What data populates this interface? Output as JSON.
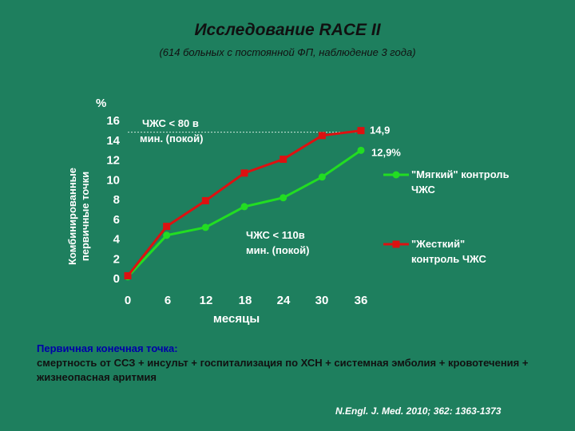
{
  "slide": {
    "title": "Исследование RACE II",
    "subtitle": "(614 больных с постоянной ФП, наблюдение 3 года)",
    "footnote_line1": "Первичная конечная точка:",
    "footnote_line2": "смертность от ССЗ + инсульт + госпитализация по ХСН + системная эмболия + кровотечения + жизнеопасная аритмия",
    "reference": "N.Engl. J. Med. 2010; 362: 1363-1373"
  },
  "colors": {
    "background": "#1e7f5e",
    "lenient": "#22dd22",
    "strict": "#dd1111"
  },
  "chart_data": {
    "type": "line",
    "ylabel_unit": "%",
    "ylabel_lines": [
      "Комбинированные",
      "первичные точки"
    ],
    "xlabel": "месяцы",
    "x": [
      0,
      6,
      12,
      18,
      24,
      30,
      36
    ],
    "yticks": [
      0,
      2,
      4,
      6,
      8,
      10,
      12,
      14,
      16
    ],
    "ylim": [
      0,
      16
    ],
    "xlim": [
      0,
      36
    ],
    "series": [
      {
        "name": "\"Мягкий\" контроль ЧЖС",
        "name_lines": [
          "\"Мягкий\" контроль",
          "ЧЖС"
        ],
        "color": "#22dd22",
        "values": [
          0.1,
          4.3,
          5.1,
          7.2,
          8.1,
          10.2,
          12.9
        ]
      },
      {
        "name": "\"Жесткий\" контроль ЧЖС",
        "name_lines": [
          "\"Жесткий\"",
          "контроль ЧЖС"
        ],
        "color": "#dd1111",
        "values": [
          0.2,
          5.2,
          7.8,
          10.6,
          12.0,
          14.4,
          14.9
        ]
      }
    ],
    "end_labels": [
      "12,9%",
      "14,9"
    ],
    "annotations": [
      {
        "lines": [
          "ЧЖС < 80 в",
          "мин. (покой)"
        ]
      },
      {
        "lines": [
          "ЧЖС < 110в",
          "мин. (покой)"
        ]
      }
    ]
  }
}
